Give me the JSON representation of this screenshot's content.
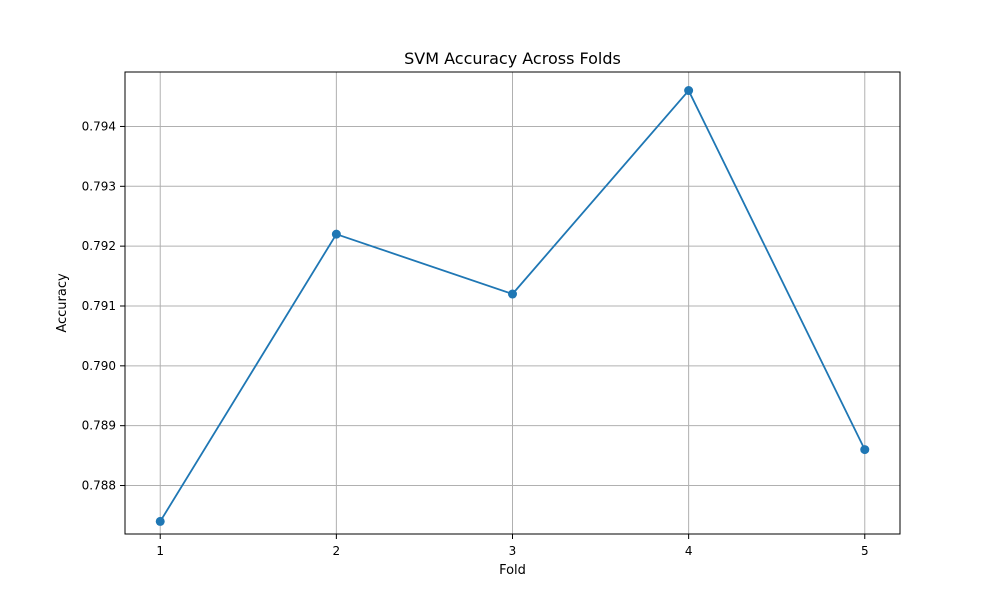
{
  "chart_data": {
    "type": "line",
    "title": "SVM Accuracy Across Folds",
    "xlabel": "Fold",
    "ylabel": "Accuracy",
    "x": [
      1,
      2,
      3,
      4,
      5
    ],
    "series": [
      {
        "values": [
          0.7874,
          0.7922,
          0.7912,
          0.7946,
          0.7886
        ],
        "color": "#1f77b4",
        "marker": "circle"
      }
    ],
    "xlim": [
      0.8,
      5.2
    ],
    "ylim": [
      0.78719,
      0.79491
    ],
    "xticks": [
      1,
      2,
      3,
      4,
      5
    ],
    "xtick_labels": [
      "1",
      "2",
      "3",
      "4",
      "5"
    ],
    "yticks": [
      0.788,
      0.789,
      0.79,
      0.791,
      0.792,
      0.793,
      0.794
    ],
    "ytick_labels": [
      "0.788",
      "0.789",
      "0.790",
      "0.791",
      "0.792",
      "0.793",
      "0.794"
    ],
    "grid": true,
    "legend": "none"
  }
}
